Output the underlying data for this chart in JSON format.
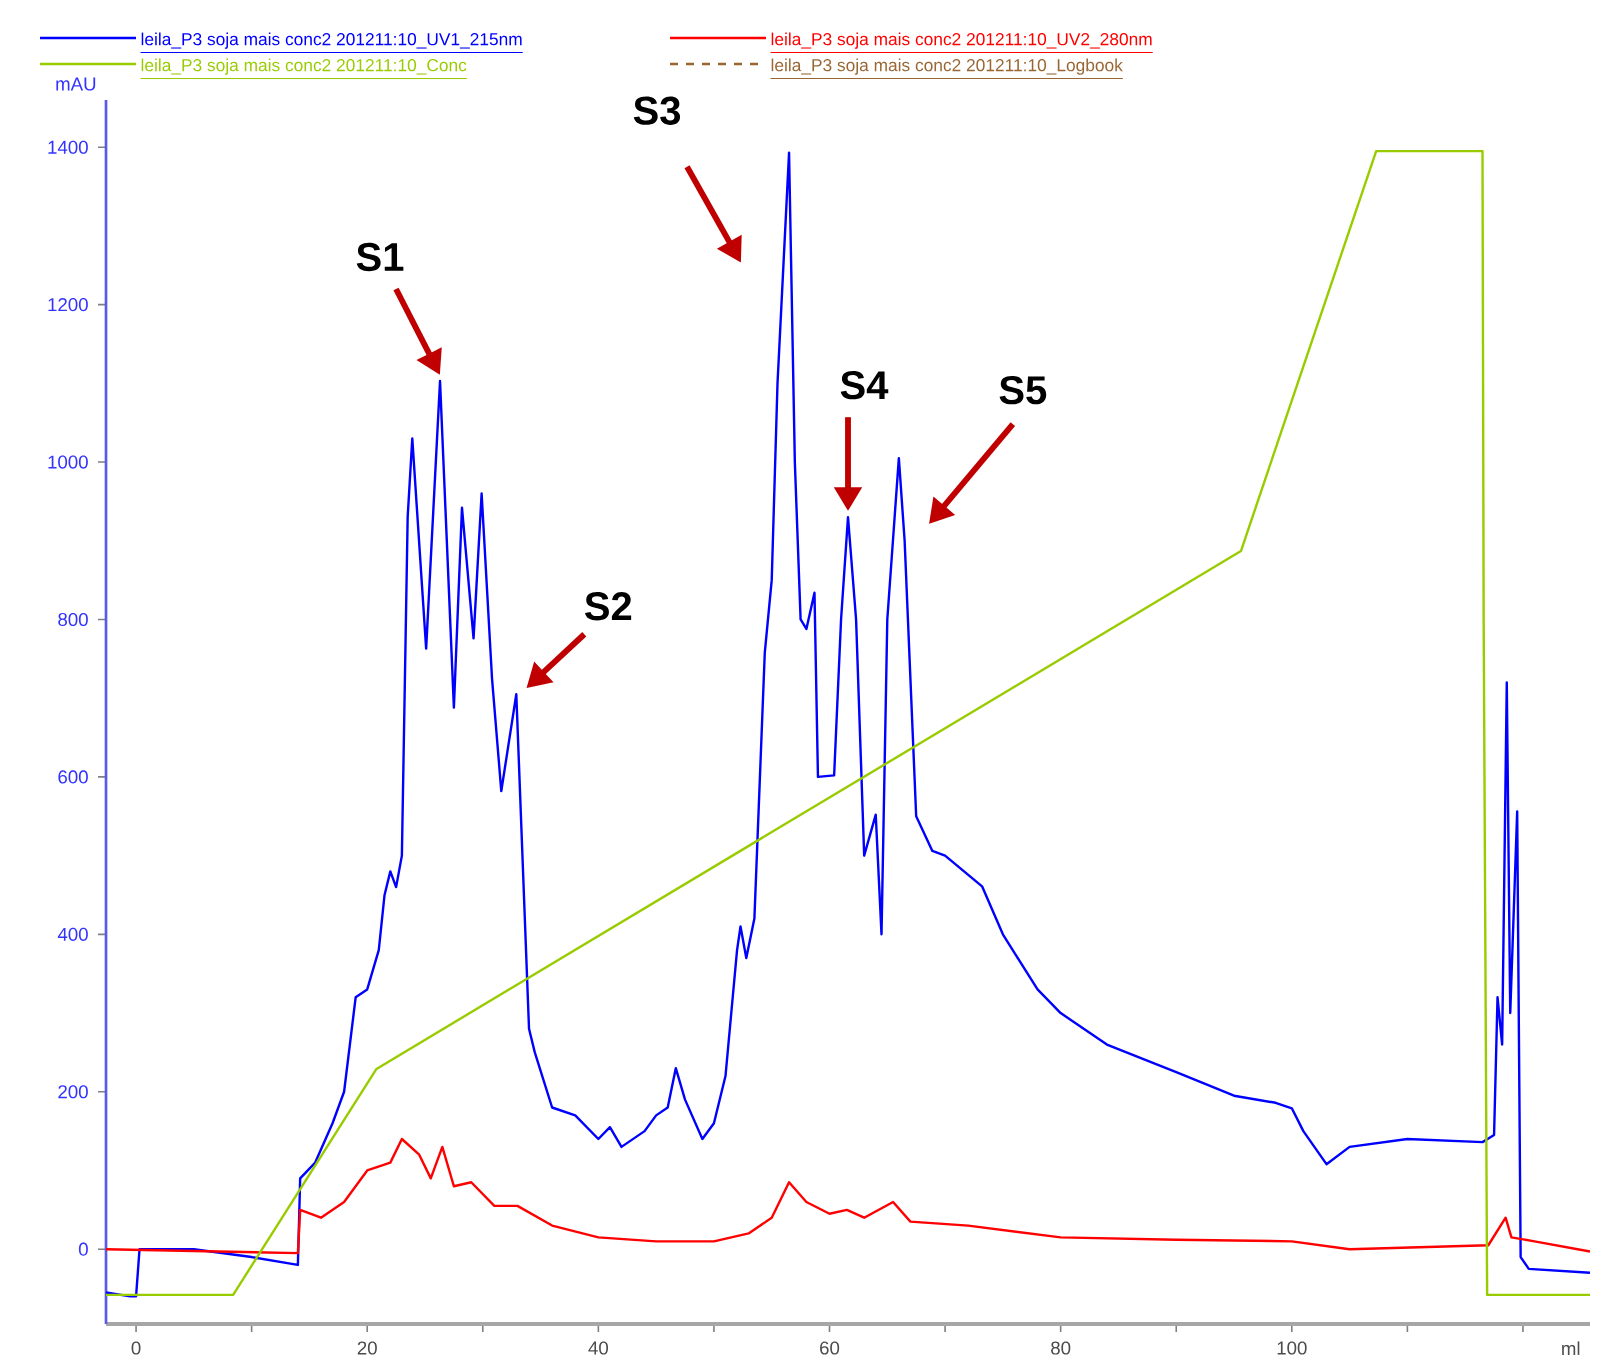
{
  "chart_data": {
    "type": "line",
    "legend": "top",
    "grid": false,
    "marker": "none",
    "xlabel": "ml",
    "ylabel": "mAU",
    "xlim": [
      -2.6,
      125.8
    ],
    "ylim": [
      -95,
      1460
    ],
    "xticks": [
      0,
      {
        "value": 10,
        "label": null
      },
      20,
      {
        "value": 30,
        "label": null
      },
      40,
      {
        "value": 50,
        "label": null
      },
      60,
      {
        "value": 70,
        "label": null
      },
      80,
      {
        "value": 90,
        "label": null
      },
      100,
      {
        "value": 110,
        "label": null
      },
      {
        "value": 120,
        "label": null
      }
    ],
    "yticks": [
      0,
      200,
      400,
      600,
      800,
      1000,
      1200,
      1400
    ],
    "series": [
      {
        "name": "leila_P3 soja mais conc2 201211:10_UV1_215nm",
        "color": "#0000ff",
        "x": [
          -2.6,
          -0.5,
          0,
          0.3,
          5,
          10,
          14,
          14.2,
          15.5,
          17,
          18,
          19,
          20,
          21,
          21.5,
          22,
          22.5,
          23,
          23.5,
          23.9,
          25.1,
          26.3,
          27.5,
          28.2,
          29.2,
          29.9,
          30.8,
          31.6,
          32.9,
          34,
          34.5,
          36,
          38,
          40,
          41,
          42,
          44,
          45,
          46,
          46.7,
          47.5,
          49,
          50,
          51,
          52,
          52.3,
          52.8,
          53.5,
          54.4,
          55,
          55.5,
          56.5,
          57,
          57.5,
          58,
          58.7,
          59,
          60.4,
          61,
          61.6,
          62.3,
          63,
          64,
          64.5,
          65,
          66,
          66.5,
          67.5,
          68.9,
          70,
          73.2,
          75,
          78,
          80,
          84,
          90,
          95,
          98.6,
          100,
          101,
          103,
          105,
          110,
          116.5,
          117.5,
          117.8,
          118.2,
          118.6,
          118.9,
          119.5,
          119.8,
          120.5,
          125.8
        ],
        "values": [
          -55,
          -60,
          -60,
          0,
          0,
          -10,
          -20,
          90,
          110,
          160,
          200,
          320,
          330,
          380,
          450,
          480,
          460,
          500,
          930,
          1030,
          763,
          1103,
          688,
          942,
          776,
          960,
          725,
          582,
          705,
          280,
          250,
          180,
          170,
          140,
          155,
          130,
          150,
          170,
          180,
          230,
          190,
          140,
          160,
          220,
          380,
          410,
          370,
          420,
          758,
          850,
          1100,
          1393,
          1000,
          800,
          788,
          834,
          600,
          602,
          800,
          930,
          800,
          500,
          552,
          400,
          800,
          1005,
          900,
          550,
          506,
          500,
          461,
          400,
          330,
          300,
          260,
          225,
          195,
          186,
          179,
          150,
          108,
          130,
          140,
          136,
          145,
          320,
          260,
          720,
          300,
          556,
          -10,
          -25,
          -30
        ]
      },
      {
        "name": "leila_P3 soja mais conc2 201211:10_UV2_280nm",
        "color": "#ff0000",
        "x": [
          -2.6,
          14,
          14.2,
          16,
          18,
          20,
          22,
          23,
          24.5,
          25.5,
          26.5,
          27.5,
          29,
          31,
          33,
          36,
          40,
          45,
          50,
          53,
          55,
          56.5,
          58,
          60,
          61.5,
          63,
          65.5,
          67,
          72,
          80,
          90,
          100,
          105,
          117,
          118.5,
          119,
          121,
          125.8
        ],
        "values": [
          0,
          -5,
          50,
          40,
          60,
          100,
          110,
          140,
          120,
          90,
          130,
          80,
          85,
          55,
          55,
          30,
          15,
          10,
          10,
          20,
          40,
          85,
          60,
          45,
          50,
          40,
          60,
          35,
          30,
          15,
          12,
          10,
          0,
          5,
          40,
          15,
          10,
          -3
        ]
      },
      {
        "name": "leila_P3 soja mais conc2 201211:10_Conc",
        "color": "#99cc00",
        "x": [
          -2.6,
          8.4,
          20.8,
          95.6,
          107.3,
          116.5,
          116.6,
          116.9,
          125.8
        ],
        "values": [
          -58,
          -58,
          229,
          887,
          1395,
          1395,
          800,
          -58,
          -58
        ]
      },
      {
        "name": "leila_P3 soja mais conc2 201211:10_Logbook",
        "color": "#996633",
        "line_style": "dashed"
      }
    ],
    "annotations": [
      {
        "text": "S1",
        "x": 26.3,
        "y": 1103
      },
      {
        "text": "S2",
        "x": 32.9,
        "y": 705
      },
      {
        "text": "S3",
        "x": 56.5,
        "y": 1393
      },
      {
        "text": "S4",
        "x": 61.6,
        "y": 930
      },
      {
        "text": "S5",
        "x": 66,
        "y": 1005
      }
    ]
  }
}
